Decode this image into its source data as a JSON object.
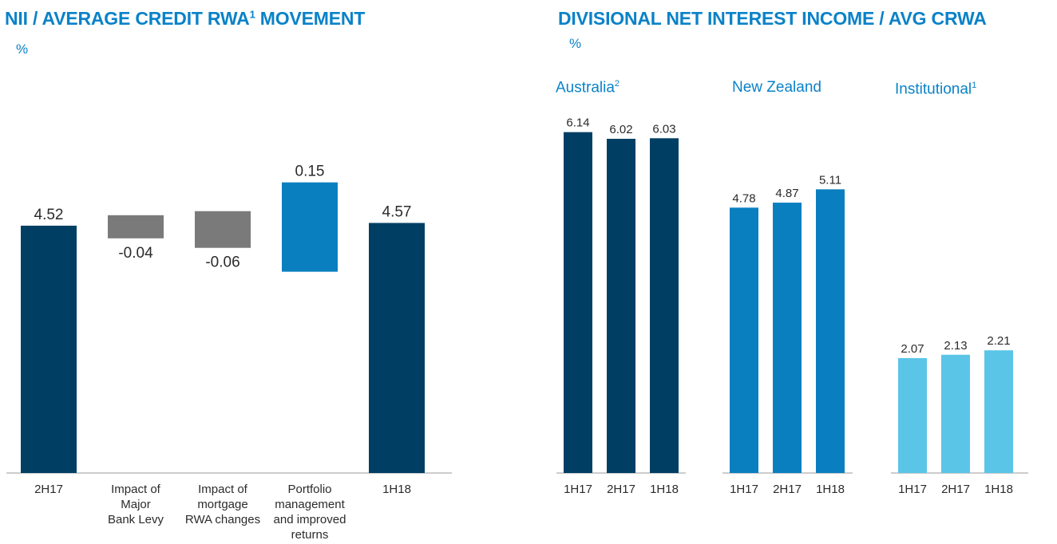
{
  "left": {
    "title": "NII / AVERAGE CREDIT RWA",
    "title_sup": "1",
    "title_suffix": " MOVEMENT",
    "unit": "%"
  },
  "right": {
    "title": "DIVISIONAL NET INTEREST INCOME / AVG CRWA",
    "unit": "%"
  },
  "colors": {
    "dark_navy": "#003f63",
    "grey": "#7a7a7a",
    "mid_blue": "#0a7fc0",
    "light_blue": "#5bc5e8",
    "title_blue": "#0a82c8"
  },
  "chart_data": [
    {
      "type": "bar",
      "subtype": "waterfall",
      "categories": [
        [
          "2H17"
        ],
        [
          "Impact of",
          "Major",
          "Bank Levy"
        ],
        [
          "Impact of",
          "mortgage",
          "RWA changes"
        ],
        [
          "Portfolio",
          "management",
          "and improved",
          "returns"
        ],
        [
          "1H18"
        ]
      ],
      "values": [
        4.52,
        -0.04,
        -0.06,
        0.15,
        4.57
      ],
      "value_labels": [
        "4.52",
        "-0.04",
        "-0.06",
        "0.15",
        "4.57"
      ],
      "kinds": [
        "total",
        "delta",
        "delta",
        "delta",
        "total"
      ],
      "bar_colors": [
        "#003f63",
        "#7a7a7a",
        "#7a7a7a",
        "#0a7fc0",
        "#003f63"
      ]
    },
    {
      "type": "bar",
      "groups": [
        {
          "name": "Australia",
          "name_sup": "2",
          "categories": [
            "1H17",
            "2H17",
            "1H18"
          ],
          "values": [
            6.14,
            6.02,
            6.03
          ],
          "value_labels": [
            "6.14",
            "6.02",
            "6.03"
          ],
          "color": "#003f63"
        },
        {
          "name": "New Zealand",
          "name_sup": "",
          "categories": [
            "1H17",
            "2H17",
            "1H18"
          ],
          "values": [
            4.78,
            4.87,
            5.11
          ],
          "value_labels": [
            "4.78",
            "4.87",
            "5.11"
          ],
          "color": "#0a7fc0"
        },
        {
          "name": "Institutional",
          "name_sup": "1",
          "categories": [
            "1H17",
            "2H17",
            "1H18"
          ],
          "values": [
            2.07,
            2.13,
            2.21
          ],
          "value_labels": [
            "2.07",
            "2.13",
            "2.21"
          ],
          "color": "#5bc5e8"
        }
      ]
    }
  ]
}
